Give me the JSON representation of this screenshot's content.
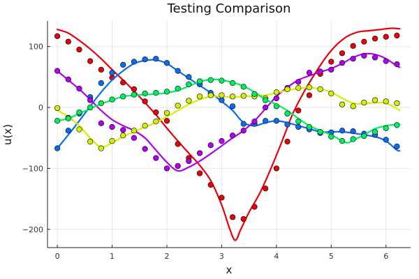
{
  "chart_data": {
    "type": "line",
    "title": "Testing Comparison",
    "xlabel": "x",
    "ylabel": "u(x)",
    "xlim": [
      -0.18,
      6.45
    ],
    "ylim": [
      -230,
      142
    ],
    "x_ticks": [
      0,
      1,
      2,
      3,
      4,
      5,
      6
    ],
    "x_tick_labels": [
      "0",
      "1",
      "2",
      "3",
      "4",
      "5",
      "6"
    ],
    "y_ticks": [
      -200,
      -100,
      0,
      100
    ],
    "y_tick_labels": [
      "−200",
      "−100",
      "0",
      "100"
    ],
    "grid": true,
    "legend": "none",
    "point_x": [
      0.0,
      0.2,
      0.4,
      0.6,
      0.8,
      1.0,
      1.2,
      1.4,
      1.6,
      1.8,
      2.0,
      2.2,
      2.4,
      2.6,
      2.8,
      3.0,
      3.2,
      3.4,
      3.6,
      3.8,
      4.0,
      4.2,
      4.4,
      4.6,
      4.8,
      5.0,
      5.2,
      5.4,
      5.6,
      5.8,
      6.0,
      6.2
    ],
    "series": [
      {
        "name": "red",
        "color": "#e8000b",
        "curve": [
          [
            0.0,
            128
          ],
          [
            0.2,
            122
          ],
          [
            0.4,
            110
          ],
          [
            0.6,
            96
          ],
          [
            0.8,
            80
          ],
          [
            1.0,
            62
          ],
          [
            1.2,
            45
          ],
          [
            1.4,
            27
          ],
          [
            1.6,
            8
          ],
          [
            1.8,
            -12
          ],
          [
            2.0,
            -34
          ],
          [
            2.2,
            -55
          ],
          [
            2.4,
            -75
          ],
          [
            2.6,
            -95
          ],
          [
            2.8,
            -120
          ],
          [
            3.0,
            -160
          ],
          [
            3.15,
            -200
          ],
          [
            3.25,
            -218
          ],
          [
            3.35,
            -200
          ],
          [
            3.5,
            -172
          ],
          [
            3.7,
            -140
          ],
          [
            3.9,
            -100
          ],
          [
            4.1,
            -56
          ],
          [
            4.3,
            -10
          ],
          [
            4.5,
            25
          ],
          [
            4.7,
            55
          ],
          [
            4.9,
            82
          ],
          [
            5.1,
            103
          ],
          [
            5.3,
            117
          ],
          [
            5.5,
            124
          ],
          [
            5.7,
            126
          ],
          [
            5.9,
            128
          ],
          [
            6.1,
            130
          ],
          [
            6.25,
            129
          ]
        ],
        "points": [
          117,
          108,
          95,
          76,
          62,
          49,
          41,
          30,
          10,
          -8,
          -22,
          -60,
          -83,
          -108,
          -127,
          -148,
          -180,
          -183,
          -163,
          -133,
          -100,
          -56,
          -5,
          20,
          55,
          75,
          89,
          101,
          108,
          113,
          116,
          118
        ]
      },
      {
        "name": "blue",
        "color": "#0a6cf0",
        "curve": [
          [
            0.0,
            -67
          ],
          [
            0.2,
            -45
          ],
          [
            0.4,
            -22
          ],
          [
            0.6,
            2
          ],
          [
            0.8,
            25
          ],
          [
            1.0,
            45
          ],
          [
            1.2,
            60
          ],
          [
            1.4,
            72
          ],
          [
            1.6,
            77
          ],
          [
            1.8,
            78
          ],
          [
            2.0,
            72
          ],
          [
            2.2,
            60
          ],
          [
            2.4,
            48
          ],
          [
            2.6,
            36
          ],
          [
            2.8,
            24
          ],
          [
            3.0,
            10
          ],
          [
            3.2,
            -5
          ],
          [
            3.4,
            -25
          ],
          [
            3.6,
            -30
          ],
          [
            3.8,
            -25
          ],
          [
            4.0,
            -22
          ],
          [
            4.2,
            -25
          ],
          [
            4.4,
            -30
          ],
          [
            4.6,
            -35
          ],
          [
            4.8,
            -40
          ],
          [
            5.0,
            -40
          ],
          [
            5.2,
            -40
          ],
          [
            5.4,
            -42
          ],
          [
            5.6,
            -45
          ],
          [
            5.8,
            -48
          ],
          [
            6.0,
            -55
          ],
          [
            6.2,
            -70
          ],
          [
            6.25,
            -71
          ]
        ],
        "points": [
          -67,
          -38,
          -10,
          17,
          40,
          57,
          70,
          75,
          79,
          80,
          73,
          60,
          50,
          38,
          24,
          12,
          2,
          -27,
          -27,
          -22,
          -22,
          -28,
          -32,
          -36,
          -42,
          -41,
          -38,
          -39,
          -43,
          -45,
          -53,
          -64
        ]
      },
      {
        "name": "purple",
        "color": "#b000f0",
        "curve": [
          [
            0.0,
            60
          ],
          [
            0.2,
            45
          ],
          [
            0.4,
            30
          ],
          [
            0.6,
            13
          ],
          [
            0.8,
            -5
          ],
          [
            1.0,
            -20
          ],
          [
            1.2,
            -30
          ],
          [
            1.4,
            -38
          ],
          [
            1.6,
            -50
          ],
          [
            1.8,
            -70
          ],
          [
            2.0,
            -90
          ],
          [
            2.2,
            -104
          ],
          [
            2.4,
            -98
          ],
          [
            2.6,
            -88
          ],
          [
            2.8,
            -76
          ],
          [
            3.0,
            -63
          ],
          [
            3.2,
            -50
          ],
          [
            3.4,
            -38
          ],
          [
            3.6,
            -22
          ],
          [
            3.8,
            -2
          ],
          [
            4.0,
            18
          ],
          [
            4.2,
            33
          ],
          [
            4.4,
            45
          ],
          [
            4.6,
            52
          ],
          [
            4.8,
            58
          ],
          [
            5.0,
            64
          ],
          [
            5.2,
            72
          ],
          [
            5.4,
            82
          ],
          [
            5.6,
            88
          ],
          [
            5.8,
            87
          ],
          [
            6.0,
            80
          ],
          [
            6.2,
            68
          ],
          [
            6.25,
            66
          ]
        ],
        "points": [
          60,
          46,
          31,
          12,
          -26,
          -32,
          -37,
          -50,
          -68,
          -83,
          -100,
          -96,
          -88,
          -75,
          -62,
          -55,
          -46,
          -38,
          -23,
          0,
          15,
          32,
          42,
          57,
          59,
          62,
          73,
          80,
          85,
          82,
          76,
          71
        ]
      },
      {
        "name": "yellow",
        "color": "#d4f000",
        "curve": [
          [
            0.0,
            -5
          ],
          [
            0.2,
            -15
          ],
          [
            0.4,
            -30
          ],
          [
            0.6,
            -50
          ],
          [
            0.8,
            -65
          ],
          [
            1.0,
            -58
          ],
          [
            1.2,
            -48
          ],
          [
            1.4,
            -40
          ],
          [
            1.6,
            -32
          ],
          [
            1.8,
            -25
          ],
          [
            2.0,
            -15
          ],
          [
            2.2,
            -5
          ],
          [
            2.4,
            5
          ],
          [
            2.6,
            13
          ],
          [
            2.8,
            18
          ],
          [
            3.0,
            18
          ],
          [
            3.2,
            17
          ],
          [
            3.4,
            18
          ],
          [
            3.6,
            19
          ],
          [
            3.8,
            20
          ],
          [
            4.0,
            24
          ],
          [
            4.2,
            28
          ],
          [
            4.4,
            31
          ],
          [
            4.6,
            33
          ],
          [
            4.8,
            30
          ],
          [
            5.0,
            25
          ],
          [
            5.2,
            15
          ],
          [
            5.4,
            7
          ],
          [
            5.6,
            6
          ],
          [
            5.8,
            8
          ],
          [
            6.0,
            7
          ],
          [
            6.2,
            -2
          ],
          [
            6.25,
            -5
          ]
        ],
        "points": [
          -1,
          -17,
          -36,
          -56,
          -67,
          -55,
          -46,
          -38,
          -30,
          -23,
          -9,
          3,
          11,
          18,
          20,
          20,
          18,
          19,
          18,
          15,
          25,
          30,
          32,
          33,
          30,
          23,
          5,
          2,
          8,
          12,
          10,
          7
        ]
      },
      {
        "name": "green",
        "color": "#00ee60",
        "curve": [
          [
            0.0,
            -22
          ],
          [
            0.2,
            -18
          ],
          [
            0.4,
            -10
          ],
          [
            0.6,
            -2
          ],
          [
            0.8,
            6
          ],
          [
            1.0,
            12
          ],
          [
            1.2,
            18
          ],
          [
            1.4,
            20
          ],
          [
            1.6,
            21
          ],
          [
            1.8,
            22
          ],
          [
            2.0,
            24
          ],
          [
            2.2,
            28
          ],
          [
            2.4,
            35
          ],
          [
            2.6,
            42
          ],
          [
            2.8,
            46
          ],
          [
            3.0,
            45
          ],
          [
            3.2,
            41
          ],
          [
            3.4,
            35
          ],
          [
            3.6,
            25
          ],
          [
            3.8,
            13
          ],
          [
            4.0,
            5
          ],
          [
            4.2,
            -5
          ],
          [
            4.4,
            -18
          ],
          [
            4.6,
            -30
          ],
          [
            4.8,
            -38
          ],
          [
            5.0,
            -45
          ],
          [
            5.2,
            -55
          ],
          [
            5.3,
            -58
          ],
          [
            5.4,
            -54
          ],
          [
            5.6,
            -45
          ],
          [
            5.8,
            -35
          ],
          [
            6.0,
            -30
          ],
          [
            6.2,
            -28
          ],
          [
            6.25,
            -28
          ]
        ],
        "points": [
          -22,
          -18,
          -8,
          0,
          7,
          13,
          18,
          21,
          23,
          24,
          26,
          31,
          38,
          43,
          45,
          44,
          40,
          34,
          22,
          12,
          2,
          -10,
          -23,
          -32,
          -40,
          -48,
          -55,
          -52,
          -47,
          -40,
          -34,
          -29
        ]
      }
    ]
  }
}
